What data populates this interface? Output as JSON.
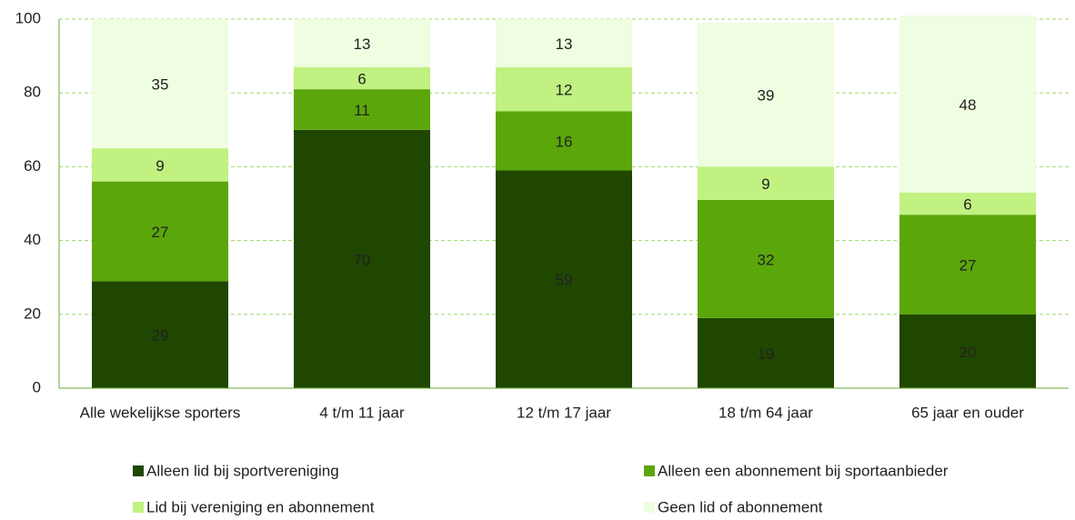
{
  "chart_data": {
    "type": "stacked_bar",
    "categories": [
      "Alle wekelijkse sporters",
      "4 t/m 11 jaar",
      "12 t/m 17 jaar",
      "18 t/m 64 jaar",
      "65 jaar en ouder"
    ],
    "series": [
      {
        "name": "Alleen lid bij sportvereniging",
        "color": "#1f4700",
        "values": [
          29,
          70,
          59,
          19,
          20
        ]
      },
      {
        "name": "Alleen een abonnement bij sportaanbieder",
        "color": "#5ba60b",
        "values": [
          27,
          11,
          16,
          32,
          27
        ]
      },
      {
        "name": "Lid bij vereniging en abonnement",
        "color": "#c0f181",
        "values": [
          9,
          6,
          12,
          9,
          6
        ]
      },
      {
        "name": "Geen lid of abonnement",
        "color": "#effde0",
        "values": [
          35,
          13,
          13,
          39,
          48
        ]
      }
    ],
    "ylim": [
      0,
      100
    ],
    "yticks": [
      0,
      20,
      40,
      60,
      80,
      100
    ],
    "grid": true
  }
}
